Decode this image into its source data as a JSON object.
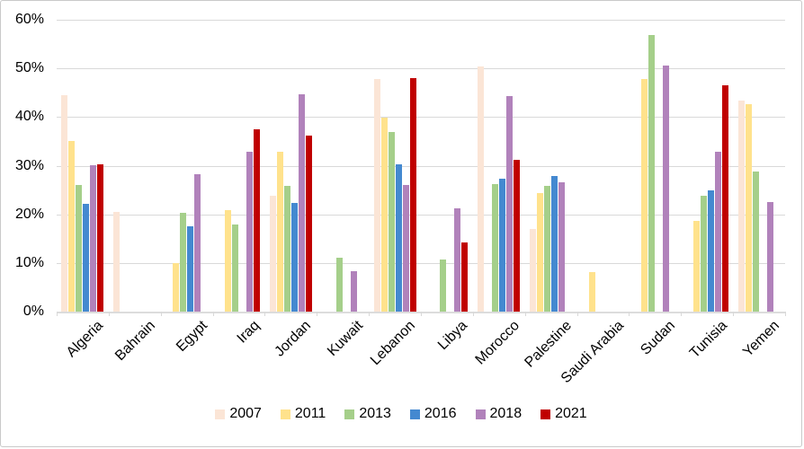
{
  "chart_data": {
    "type": "bar",
    "title": "",
    "xlabel": "",
    "ylabel": "",
    "ylim": [
      0,
      60
    ],
    "y_tick_step": 10,
    "y_tick_labels": [
      "0%",
      "10%",
      "20%",
      "30%",
      "40%",
      "50%",
      "60%"
    ],
    "grid": true,
    "legend_position": "bottom",
    "categories": [
      "Algeria",
      "Bahrain",
      "Egypt",
      "Iraq",
      "Jordan",
      "Kuwait",
      "Lebanon",
      "Libya",
      "Morocco",
      "Palestine",
      "Saudi Arabia",
      "Sudan",
      "Tunisia",
      "Yemen"
    ],
    "series": [
      {
        "name": "2007",
        "color": "#FBE5D6",
        "values": [
          44.5,
          20.5,
          null,
          null,
          23.9,
          null,
          47.8,
          null,
          50.4,
          16.9,
          null,
          null,
          null,
          43.4
        ]
      },
      {
        "name": "2011",
        "color": "#FFE28C",
        "values": [
          35.0,
          null,
          10.0,
          20.8,
          32.9,
          null,
          39.8,
          null,
          null,
          24.4,
          8.2,
          47.8,
          18.7,
          42.7
        ]
      },
      {
        "name": "2013",
        "color": "#A5CF8A",
        "values": [
          26.0,
          null,
          20.3,
          17.9,
          25.9,
          11.0,
          36.9,
          10.7,
          26.3,
          25.8,
          null,
          56.9,
          23.8,
          28.8
        ]
      },
      {
        "name": "2016",
        "color": "#4489D0",
        "values": [
          22.2,
          null,
          17.5,
          null,
          22.3,
          null,
          30.2,
          null,
          27.3,
          27.8,
          null,
          null,
          25.0,
          null
        ]
      },
      {
        "name": "2018",
        "color": "#B182BB",
        "values": [
          30.1,
          null,
          28.2,
          32.8,
          44.6,
          8.3,
          26.1,
          21.2,
          44.4,
          26.5,
          null,
          50.6,
          32.9,
          22.6
        ]
      },
      {
        "name": "2021",
        "color": "#C00000",
        "values": [
          30.2,
          null,
          null,
          37.4,
          36.2,
          null,
          48.0,
          14.2,
          31.2,
          null,
          null,
          null,
          46.6,
          null
        ]
      }
    ],
    "colors": {
      "gridline": "#d9d9d9",
      "axis_line": "#dcdcdc",
      "text": "#000000"
    }
  }
}
